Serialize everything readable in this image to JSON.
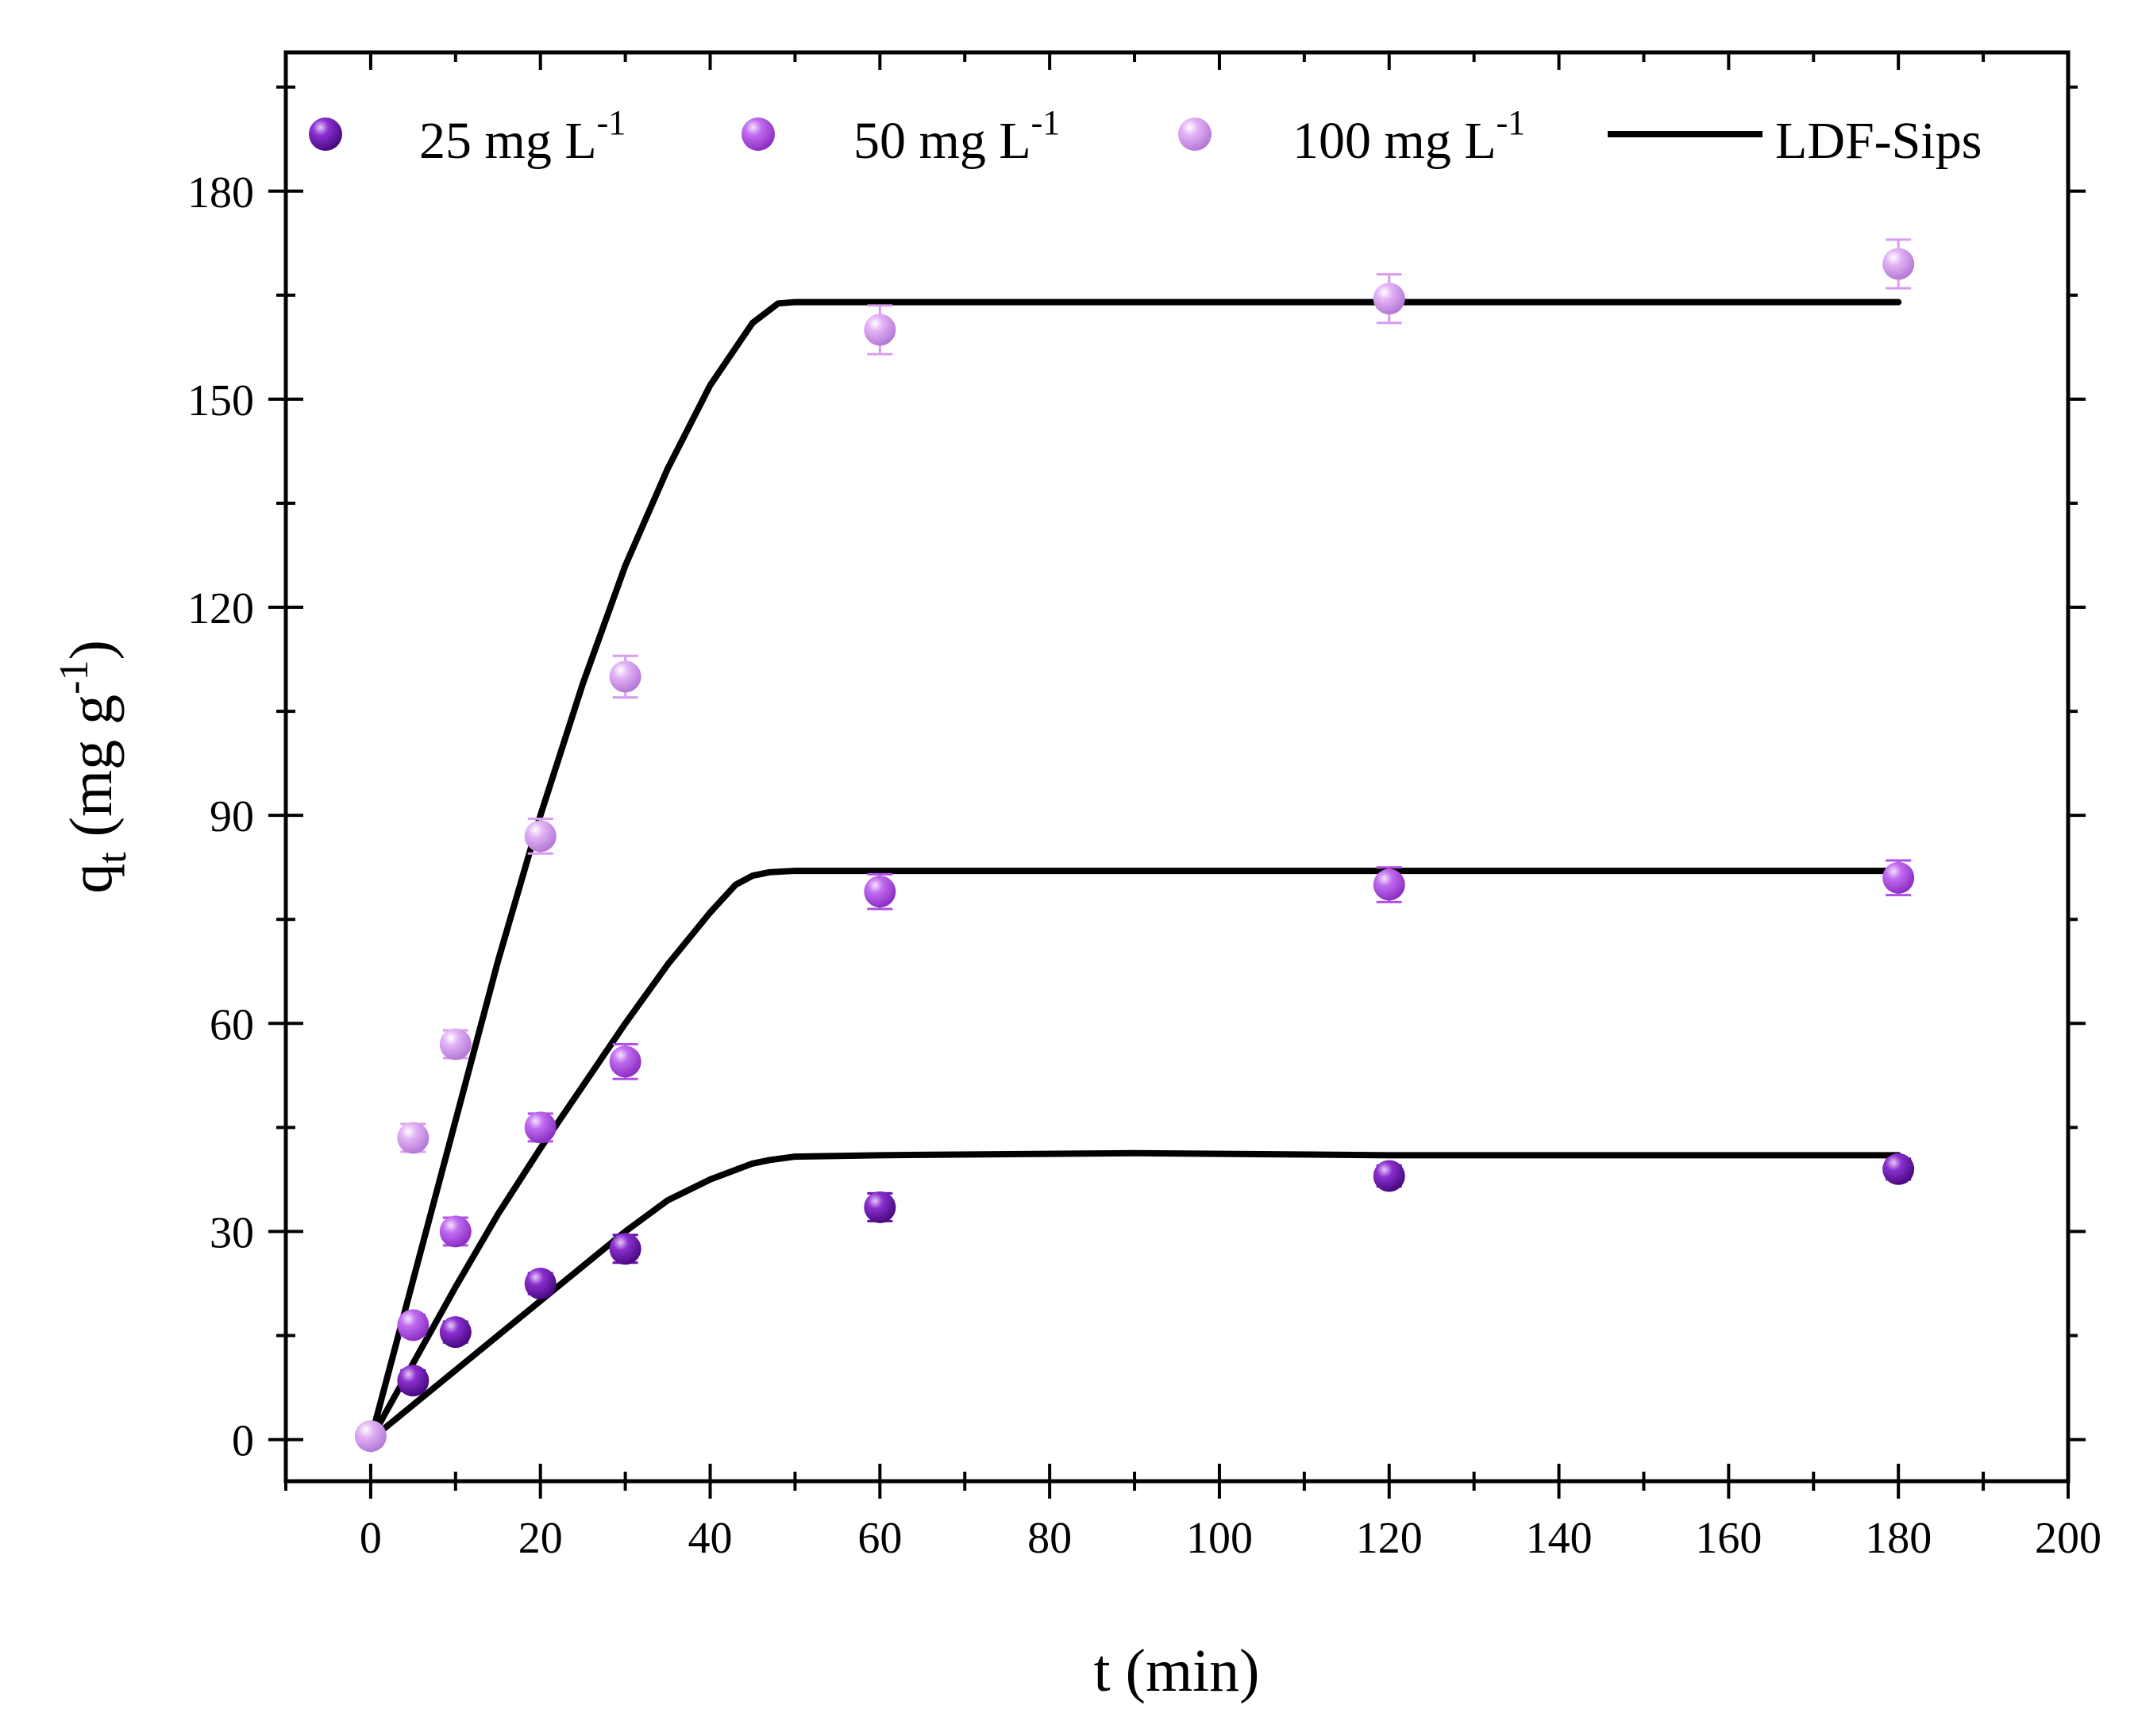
{
  "chart_data": {
    "type": "scatter",
    "title": "",
    "xlabel": "t (min)",
    "ylabel": {
      "main": "q",
      "sub": "t",
      "unit_prefix": " (mg g",
      "unit_sup": "-1",
      "unit_suffix": ")"
    },
    "xlim": [
      -10,
      200
    ],
    "ylim": [
      -6,
      200
    ],
    "xticks": [
      0,
      20,
      40,
      60,
      80,
      100,
      120,
      140,
      160,
      180,
      200
    ],
    "yticks": [
      0,
      30,
      60,
      90,
      120,
      150,
      180
    ],
    "legend_position": "top",
    "series": [
      {
        "name": "25 mg L",
        "name_sup": "-1",
        "color": "#6a0dad",
        "x": [
          5,
          10,
          20,
          30,
          60,
          120,
          180
        ],
        "y": [
          8.5,
          15.5,
          22.5,
          27.5,
          33.5,
          38.0,
          39.0
        ],
        "err": [
          1.5,
          1.5,
          1.5,
          2.0,
          2.0,
          1.5,
          1.5
        ]
      },
      {
        "name": "50 mg L",
        "name_sup": "-1",
        "color": "#b14ee6",
        "x": [
          5,
          10,
          20,
          30,
          60,
          120,
          180
        ],
        "y": [
          16.5,
          30.0,
          45.0,
          54.5,
          79.0,
          80.0,
          81.0
        ],
        "err": [
          1.5,
          2.0,
          2.0,
          2.5,
          2.5,
          2.5,
          2.5
        ]
      },
      {
        "name": "100 mg L",
        "name_sup": "-1",
        "color": "#d89bf0",
        "x": [
          0,
          5,
          10,
          20,
          30,
          60,
          120,
          180
        ],
        "y": [
          0.5,
          43.5,
          57.0,
          87.0,
          110.0,
          160.0,
          164.5,
          169.5
        ],
        "err": [
          0.5,
          2.0,
          2.0,
          2.5,
          3.0,
          3.5,
          3.5,
          3.5
        ]
      }
    ],
    "fit_lines": [
      {
        "name": "LDF-Sips",
        "color": "#000000",
        "x": [
          0,
          5,
          10,
          15,
          20,
          25,
          30,
          35,
          40,
          45,
          47,
          50,
          60,
          90,
          120,
          150,
          180
        ],
        "y": [
          0,
          5,
          10,
          15,
          20,
          25,
          30,
          34.5,
          37.5,
          39.8,
          40.3,
          40.8,
          41,
          41.3,
          41,
          41,
          41
        ]
      },
      {
        "name": "LDF-Sips",
        "color": "#000000",
        "x": [
          0,
          5,
          10,
          15,
          20,
          25,
          30,
          35,
          40,
          43,
          45,
          47,
          50,
          60,
          90,
          120,
          150,
          180
        ],
        "y": [
          0,
          11,
          22,
          32.5,
          42,
          51,
          60,
          68.5,
          76,
          80,
          81.3,
          81.8,
          82,
          82,
          82,
          82,
          82,
          82
        ]
      },
      {
        "name": "LDF-Sips",
        "color": "#000000",
        "x": [
          0,
          5,
          10,
          15,
          20,
          25,
          30,
          35,
          40,
          45,
          48,
          50,
          60,
          90,
          120,
          150,
          180
        ],
        "y": [
          0,
          23,
          46,
          69,
          90,
          109,
          126,
          140,
          152,
          161,
          163.8,
          164,
          164,
          164,
          164,
          164,
          164
        ]
      }
    ],
    "legend": [
      {
        "label": "25 mg L",
        "sup": "-1",
        "kind": "marker",
        "color": "#6a0dad"
      },
      {
        "label": "50 mg L",
        "sup": "-1",
        "kind": "marker",
        "color": "#b14ee6"
      },
      {
        "label": "100 mg L",
        "sup": "-1",
        "kind": "marker",
        "color": "#d89bf0"
      },
      {
        "label": "LDF-Sips",
        "sup": "",
        "kind": "line",
        "color": "#000000"
      }
    ]
  }
}
